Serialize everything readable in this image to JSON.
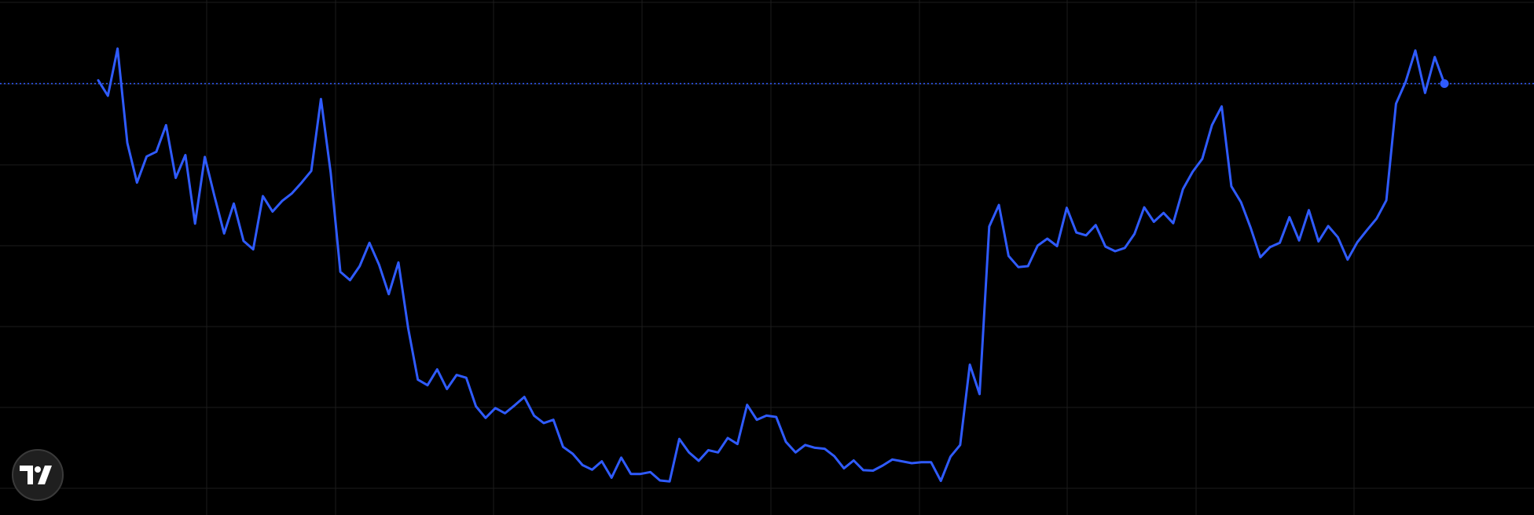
{
  "colors": {
    "background": "#000000",
    "grid": "#1c1c1c",
    "series": "#2f5bff",
    "logo_bg": "#1f1f1f"
  },
  "logo": {
    "brand": "TradingView",
    "icon": "tradingview-logo-icon"
  },
  "chart_data": {
    "type": "line",
    "title": "",
    "xlabel": "",
    "ylabel": "",
    "grid": true,
    "x_range": [
      0,
      160
    ],
    "ylim": [
      0,
      100
    ],
    "last_value": 80.5,
    "series": [
      {
        "values": [
          81.2,
          77.9,
          88.0,
          67.8,
          59.3,
          64.9,
          65.9,
          71.6,
          60.3,
          65.2,
          50.5,
          64.8,
          56.4,
          48.4,
          54.8,
          46.8,
          45.0,
          56.4,
          53.1,
          55.4,
          57.0,
          59.3,
          61.8,
          77.2,
          61.4,
          40.2,
          38.4,
          41.4,
          46.4,
          41.7,
          35.4,
          42.2,
          28.1,
          17.1,
          15.9,
          19.3,
          15.1,
          18.1,
          17.5,
          11.4,
          8.9,
          11.0,
          9.9,
          11.6,
          13.4,
          9.4,
          7.8,
          8.5,
          2.7,
          1.2,
          -1.2,
          -2.2,
          -0.4,
          -3.9,
          0.4,
          -3.1,
          -3.1,
          -2.7,
          -4.5,
          -4.7,
          4.4,
          1.5,
          -0.3,
          2.0,
          1.5,
          4.6,
          3.3,
          11.7,
          8.5,
          9.4,
          9.1,
          3.8,
          1.5,
          3.1,
          2.5,
          2.3,
          0.7,
          -1.9,
          -0.2,
          -2.3,
          -2.4,
          -1.3,
          0.0,
          -0.4,
          -0.8,
          -0.6,
          -0.6,
          -4.6,
          0.6,
          3.1,
          20.3,
          14.0,
          49.9,
          54.5,
          43.6,
          41.2,
          41.4,
          45.8,
          47.3,
          45.7,
          53.9,
          48.6,
          48.0,
          50.2,
          45.6,
          44.6,
          45.3,
          48.3,
          54.0,
          50.9,
          52.8,
          50.6,
          57.9,
          61.6,
          64.4,
          71.6,
          75.6,
          58.5,
          55.1,
          49.6,
          43.3,
          45.5,
          46.4,
          51.9,
          46.9,
          53.4,
          46.7,
          50.0,
          47.6,
          42.8,
          46.5,
          49.1,
          51.6,
          55.5,
          76.2,
          80.9,
          87.6,
          78.5,
          86.2,
          80.5
        ]
      }
    ],
    "value_mapping": {
      "v_min": -5,
      "v_max": 90
    }
  }
}
